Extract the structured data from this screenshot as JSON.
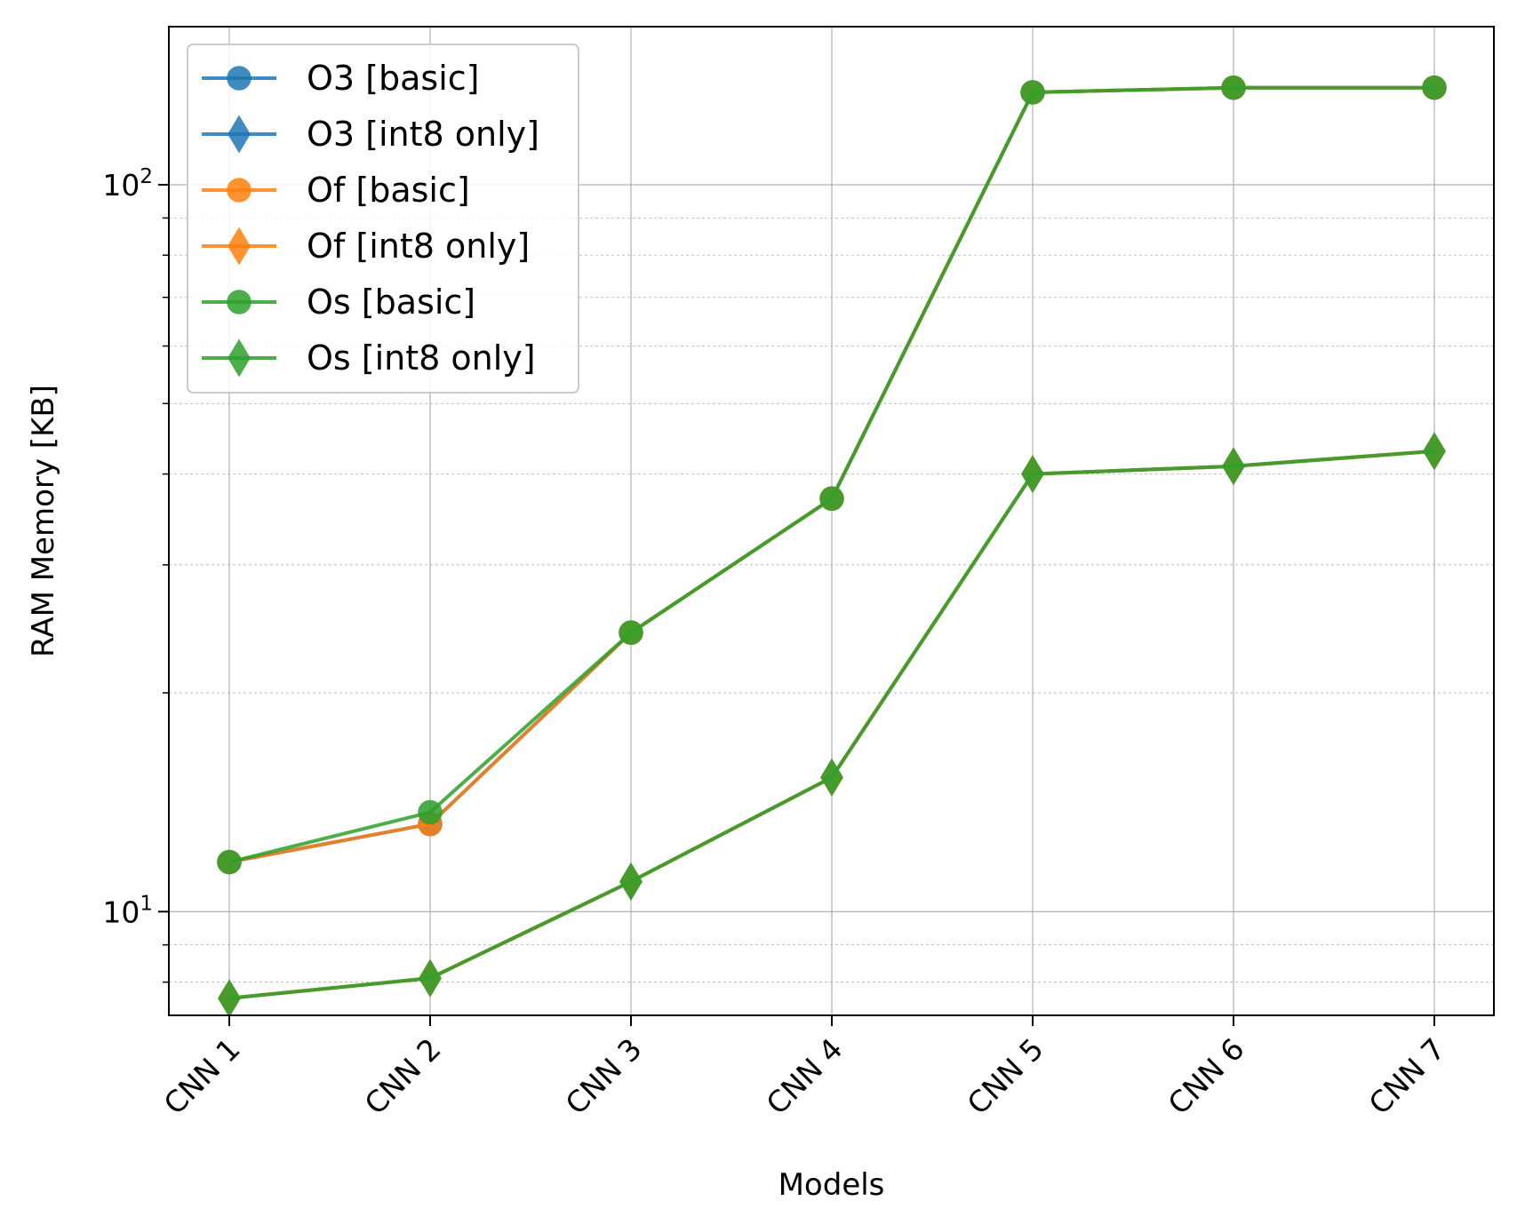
{
  "chart_data": {
    "type": "line",
    "xlabel": "Models",
    "ylabel": "RAM Memory [KB]",
    "yscale": "log",
    "ylim": [
      7.2,
      165
    ],
    "grid": {
      "major": true,
      "minor": true
    },
    "legend_position": "top-left",
    "categories": [
      "CNN 1",
      "CNN 2",
      "CNN 3",
      "CNN 4",
      "CNN 5",
      "CNN 6",
      "CNN 7"
    ],
    "series": [
      {
        "name": "O3 [basic]",
        "marker": "circle",
        "color": "#1f77b4",
        "values": [
          11.7,
          13.2,
          24.2,
          37.0,
          134,
          136,
          136
        ]
      },
      {
        "name": "O3 [int8 only]",
        "marker": "diamond",
        "color": "#1f77b4",
        "values": [
          7.6,
          8.1,
          11.0,
          15.3,
          40.0,
          41.0,
          43.0
        ]
      },
      {
        "name": "Of [basic]",
        "marker": "circle",
        "color": "#ff7f0e",
        "values": [
          11.7,
          13.2,
          24.2,
          37.0,
          134,
          136,
          136
        ]
      },
      {
        "name": "Of [int8 only]",
        "marker": "diamond",
        "color": "#ff7f0e",
        "values": [
          7.6,
          8.1,
          11.0,
          15.3,
          40.0,
          41.0,
          43.0
        ]
      },
      {
        "name": "Os [basic]",
        "marker": "circle",
        "color": "#2ca02c",
        "values": [
          11.7,
          13.7,
          24.2,
          37.0,
          134,
          136,
          136
        ]
      },
      {
        "name": "Os [int8 only]",
        "marker": "diamond",
        "color": "#2ca02c",
        "values": [
          7.6,
          8.1,
          11.0,
          15.3,
          40.0,
          41.0,
          43.0
        ]
      }
    ],
    "y_ticks": [
      {
        "value": 100,
        "base": "10",
        "exp": "2"
      },
      {
        "value": 10,
        "base": "10",
        "exp": "1"
      }
    ]
  }
}
